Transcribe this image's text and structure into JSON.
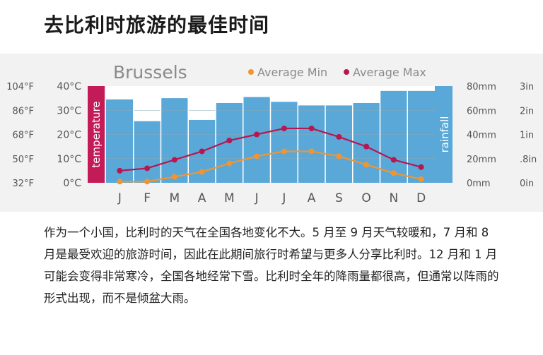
{
  "page": {
    "title": "去比利时旅游的最佳时间",
    "paragraph": "作为一个小国，比利时的天气在全国各地变化不大。5 月至 9 月天气较暖和，7 月和 8 月是最受欢迎的旅游时间，因此在此期间旅行时希望与更多人分享比利时。12 月和 1 月可能会变得非常寒冷，全国各地经常下雪。比利时全年的降雨量都很高，但通常以阵雨的形式出现，而不是倾盆大雨。"
  },
  "chart_data": {
    "type": "bar",
    "title": "Brussels",
    "categories": [
      "J",
      "F",
      "M",
      "A",
      "M",
      "J",
      "J",
      "A",
      "S",
      "O",
      "N",
      "D"
    ],
    "left_axis_label": "temperature",
    "right_axis_label": "rainfall",
    "temp_ticks_c": [
      "0°C",
      "10°C",
      "20°C",
      "30°C",
      "40°C"
    ],
    "temp_ticks_f": [
      "32°F",
      "50°F",
      "68°F",
      "86°F",
      "104°F"
    ],
    "rain_ticks_mm": [
      "0mm",
      "20mm",
      "40mm",
      "60mm",
      "80mm"
    ],
    "rain_ticks_in": [
      "0in",
      ".8in",
      "1in",
      "2in",
      "3in"
    ],
    "temp_range": [
      0,
      40
    ],
    "rain_range": [
      0,
      80
    ],
    "legend_position": "top",
    "rainfall_mm": [
      69,
      51,
      70,
      52,
      66,
      71,
      67,
      64,
      64,
      66,
      76,
      76
    ],
    "series": [
      {
        "name": "Average Min",
        "color": "#f4942f",
        "values": [
          0.5,
          0.5,
          2.5,
          4.5,
          8,
          11,
          13,
          13,
          11,
          7.5,
          4,
          1.5
        ]
      },
      {
        "name": "Average Max",
        "color": "#b7174f",
        "values": [
          5,
          6,
          9.5,
          13,
          17.5,
          20,
          22.5,
          22.5,
          19,
          15,
          9.5,
          6.5
        ]
      }
    ],
    "colors": {
      "rain_bar": "#5aa8d8",
      "temp_axis_bg": "#c21b57",
      "rain_axis_bg": "#5aa8d8",
      "panel_bg": "#f2f2f2",
      "axis_text": "#555555"
    }
  }
}
